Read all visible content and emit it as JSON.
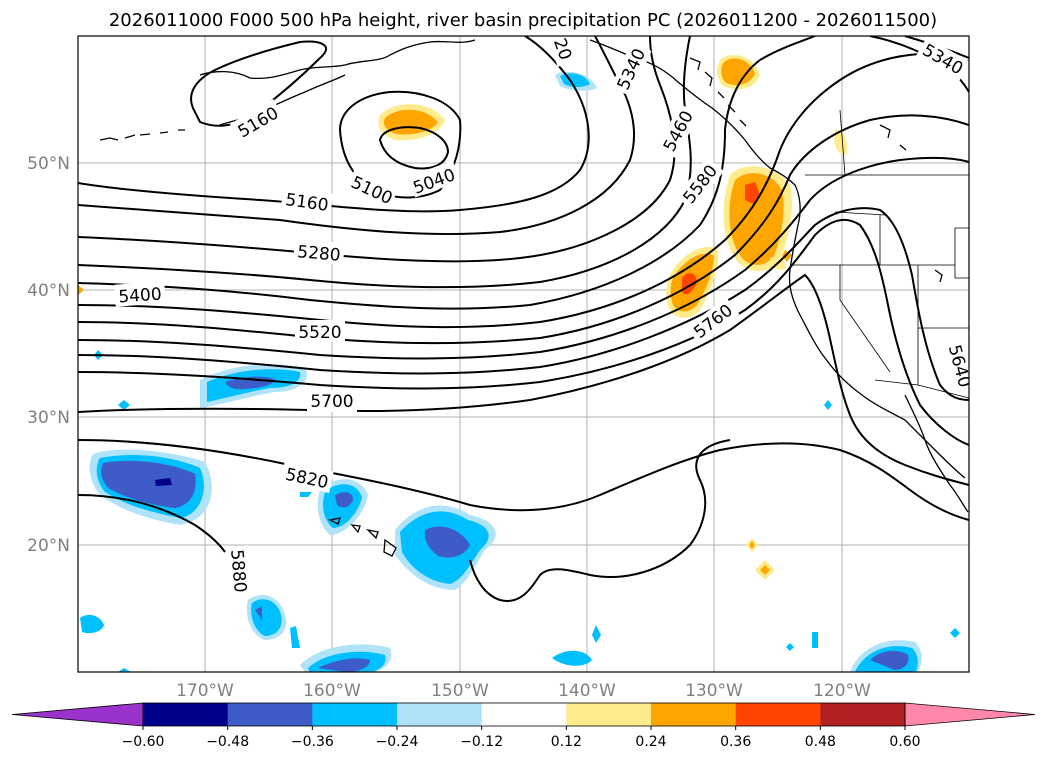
{
  "chart_data": {
    "type": "map-contour",
    "title": "2026011000 F000 500 hPa height, river basin precipitation PC (2026011200 - 2026011500)",
    "lon_ticks": [
      "170°W",
      "160°W",
      "150°W",
      "140°W",
      "130°W",
      "120°W"
    ],
    "lat_ticks": [
      "50°N",
      "40°N",
      "30°N",
      "20°N"
    ],
    "lon_range": [
      -180,
      -110
    ],
    "lat_range": [
      10,
      60
    ],
    "height_contour_labels": [
      "5160",
      "5100",
      "5040",
      "5160",
      "5280",
      "5400",
      "5520",
      "5700",
      "5820",
      "5880",
      "5580",
      "5460",
      "5760",
      "5340",
      "5640",
      "20",
      "5340"
    ],
    "colorbar": {
      "ticks": [
        "−0.60",
        "−0.48",
        "−0.36",
        "−0.24",
        "−0.12",
        "0.12",
        "0.24",
        "0.36",
        "0.48",
        "0.60"
      ],
      "colors": [
        "#9933cc",
        "#00008b",
        "#3d5cc7",
        "#00bfff",
        "#aee3fa",
        "#ffffff",
        "#ffeb8a",
        "#ffa500",
        "#ff4500",
        "#b22222",
        "#ff88aa"
      ],
      "extend": "both"
    },
    "grid": true
  }
}
